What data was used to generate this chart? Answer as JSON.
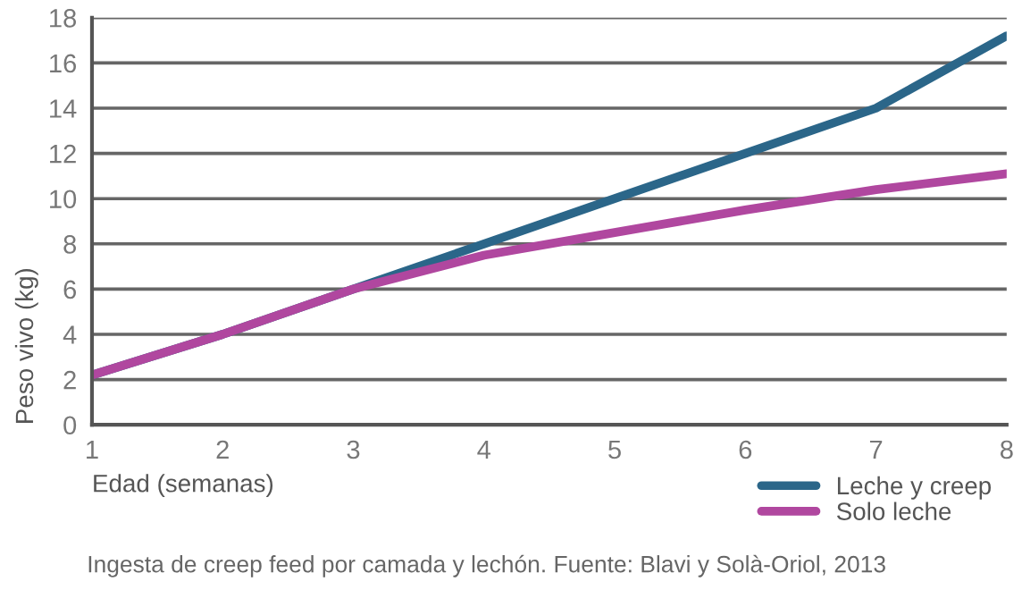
{
  "chart_data": {
    "type": "line",
    "xlabel": "Edad (semanas)",
    "ylabel": "Peso vivo (kg)",
    "x": [
      1,
      2,
      3,
      4,
      5,
      6,
      7,
      8
    ],
    "series": [
      {
        "name": "Leche y creep",
        "color": "#2b6689",
        "values": [
          2.2,
          4,
          6,
          8,
          10,
          12,
          14,
          17.2
        ]
      },
      {
        "name": "Solo leche",
        "color": "#b0479f",
        "values": [
          2.2,
          4,
          6,
          7.5,
          8.5,
          9.5,
          10.4,
          11.1
        ]
      }
    ],
    "xlim": [
      1,
      8
    ],
    "xticks": [
      1,
      2,
      3,
      4,
      5,
      6,
      7,
      8
    ],
    "ylim": [
      0,
      18
    ],
    "yticks": [
      0,
      2,
      4,
      6,
      8,
      10,
      12,
      14,
      16,
      18
    ],
    "grid": "y",
    "legend": "bottom right",
    "marker": "none",
    "line_style": "solid",
    "annotations": [
      "Ingesta de creep feed por camada y lechón. Fuente: Blavi y Solà-Oriol, 2013"
    ]
  }
}
